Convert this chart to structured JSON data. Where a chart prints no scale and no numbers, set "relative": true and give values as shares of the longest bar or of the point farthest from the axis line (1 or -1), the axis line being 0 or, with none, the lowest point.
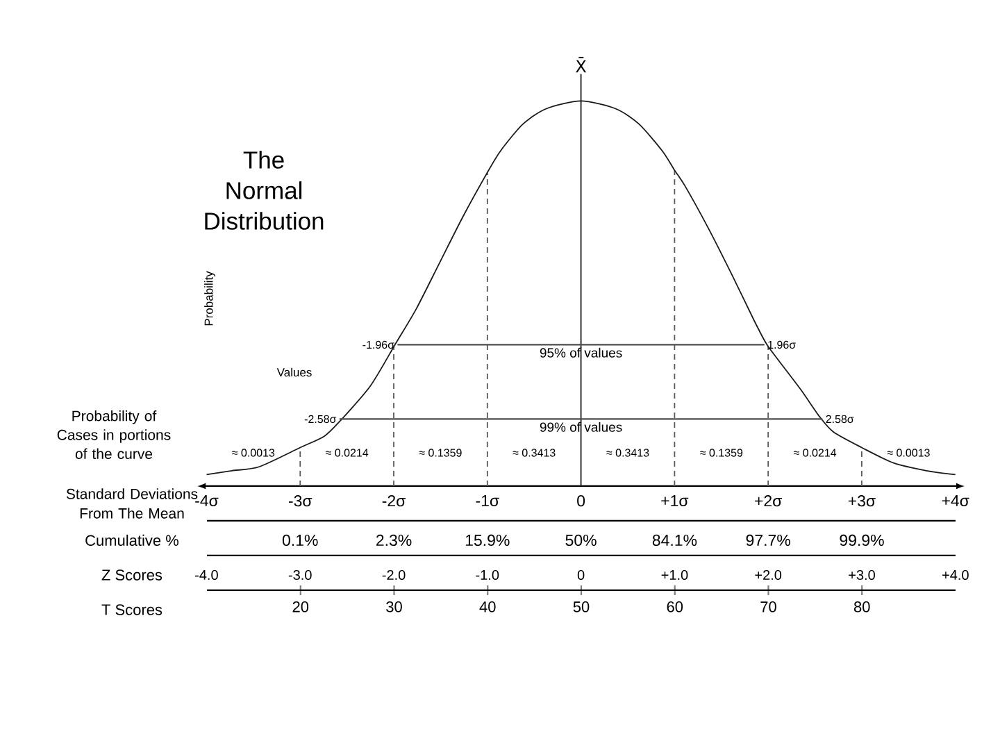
{
  "chart_data": {
    "type": "line",
    "title": "The Normal Distribution",
    "relative": true,
    "xlabel": "Standard Deviations From The Mean",
    "xlim": [
      -4.1,
      4.1
    ],
    "xticks": [
      {
        "value": -4,
        "label": "-4σ"
      },
      {
        "value": -3,
        "label": "-3σ"
      },
      {
        "value": -2,
        "label": "-2σ"
      },
      {
        "value": -1,
        "label": "-1σ"
      },
      0,
      {
        "value": 1,
        "label": "+1σ"
      },
      {
        "value": 2,
        "label": "+2σ"
      },
      {
        "value": 3,
        "label": "+3σ"
      },
      {
        "value": 4,
        "label": "+4σ"
      }
    ],
    "x2label": "T Scores",
    "x2lim": [
      10,
      90
    ],
    "x2ticks": [
      20,
      30,
      40,
      50,
      60,
      70,
      80
    ],
    "series": [
      {
        "color": "#1a1a1a",
        "x": [
          -4.0,
          -3.73,
          -3.44,
          -3.0,
          -2.74,
          -2.57,
          -2.25,
          -1.98,
          -1.76,
          -1.51,
          -1.26,
          -1.01,
          -0.86,
          -0.62,
          -0.37,
          0,
          0.37,
          0.62,
          0.87,
          1.0,
          1.11,
          1.36,
          1.61,
          1.85,
          1.98,
          2.1,
          2.35,
          2.55,
          2.7,
          3.0,
          3.34,
          3.69,
          4.0
        ],
        "values": [
          0.03,
          0.04,
          0.05,
          0.1,
          0.13,
          0.17,
          0.26,
          0.37,
          0.46,
          0.58,
          0.7,
          0.81,
          0.87,
          0.94,
          0.98,
          1,
          0.98,
          0.94,
          0.87,
          0.82,
          0.78,
          0.67,
          0.55,
          0.43,
          0.37,
          0.33,
          0.25,
          0.18,
          0.14,
          0.1,
          0.06,
          0.04,
          0.03
        ]
      },
      {
        "color": "#4d4d4d",
        "x": [
          -1.96,
          1.96
        ],
        "values": [
          0.367,
          0.367
        ]
      },
      {
        "color": "#4d4d4d",
        "x": [
          -2.58,
          2.58
        ],
        "values": [
          0.174,
          0.174
        ]
      }
    ],
    "ref_lines": [
      {
        "axis": "x",
        "value": 0,
        "label": "X̄",
        "color": "#1a1a1a"
      },
      {
        "axis": "x",
        "value": -3,
        "color": "#5a5a5a",
        "line_style": "dashed"
      },
      {
        "axis": "x",
        "value": -2,
        "color": "#5a5a5a",
        "line_style": "dashed"
      },
      {
        "axis": "x",
        "value": -1,
        "color": "#5a5a5a",
        "line_style": "dashed"
      },
      {
        "axis": "x",
        "value": 1,
        "color": "#5a5a5a",
        "line_style": "dashed"
      },
      {
        "axis": "x",
        "value": 2,
        "color": "#5a5a5a",
        "line_style": "dashed"
      },
      {
        "axis": "x",
        "value": 3,
        "color": "#5a5a5a",
        "line_style": "dashed"
      }
    ],
    "annotations": [
      "Probability of Cases in portions of the curve",
      "≈ 0.0013",
      "≈ 0.0214",
      "≈ 0.1359",
      "≈ 0.3413",
      "≈ 0.3413",
      "≈ 0.1359",
      "≈ 0.0214",
      "≈ 0.0013",
      {
        "text": "-1.96σ",
        "x": -1.96,
        "y": 0.367
      },
      {
        "text": "1.96σ",
        "x": 1.96,
        "y": 0.367
      },
      {
        "text": "95% of values",
        "x": 0,
        "y": 0.367
      },
      {
        "text": "-2.58σ",
        "x": -2.58,
        "y": 0.174
      },
      {
        "text": "2.58σ",
        "x": 2.58,
        "y": 0.174
      },
      {
        "text": "99% of values",
        "x": 0,
        "y": 0.174
      },
      "Probability",
      "Values",
      "Cumulative %",
      "0.1%",
      "2.3%",
      "15.9%",
      "50%",
      "84.1%",
      "97.7%",
      "99.9%",
      "Z Scores",
      "-4.0",
      "-3.0",
      "-2.0",
      "-1.0",
      "0",
      "+1.0",
      "+2.0",
      "+3.0",
      "+4.0"
    ]
  }
}
